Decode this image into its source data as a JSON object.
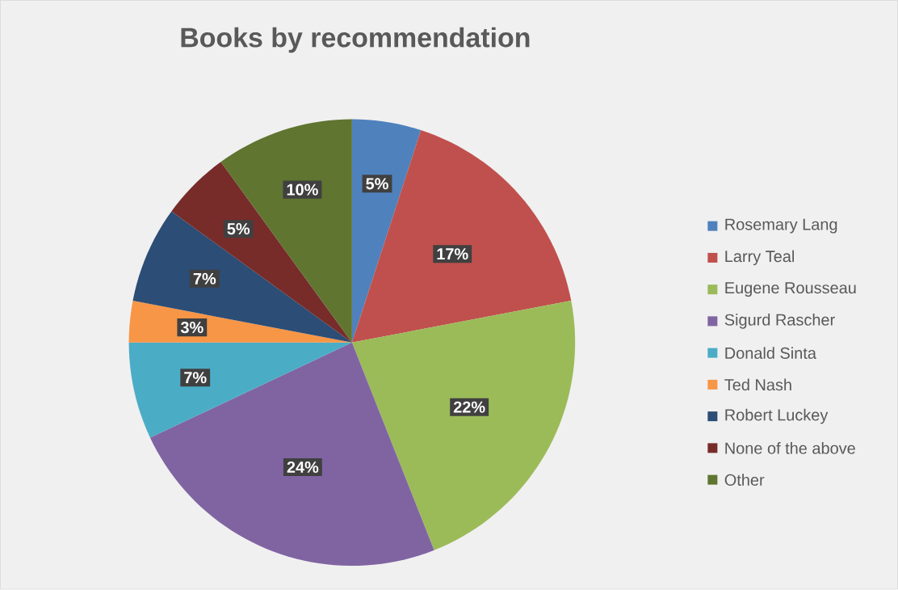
{
  "chart_data": {
    "type": "pie",
    "title": "Books by recommendation",
    "categories": [
      "Rosemary Lang",
      "Larry Teal",
      "Eugene Rousseau",
      "Sigurd Rascher",
      "Donald Sinta",
      "Ted Nash",
      "Robert Luckey",
      "None of the above",
      "Other"
    ],
    "values": [
      5,
      17,
      22,
      24,
      7,
      3,
      7,
      5,
      10
    ],
    "colors": [
      "#4f81bd",
      "#c0504d",
      "#9bbb59",
      "#8064a2",
      "#4bacc6",
      "#f79646",
      "#2c4d75",
      "#772c2a",
      "#5f7530"
    ],
    "value_labels": [
      "5%",
      "17%",
      "22%",
      "24%",
      "7%",
      "3%",
      "7%",
      "5%",
      "10%"
    ],
    "legend": "right"
  }
}
